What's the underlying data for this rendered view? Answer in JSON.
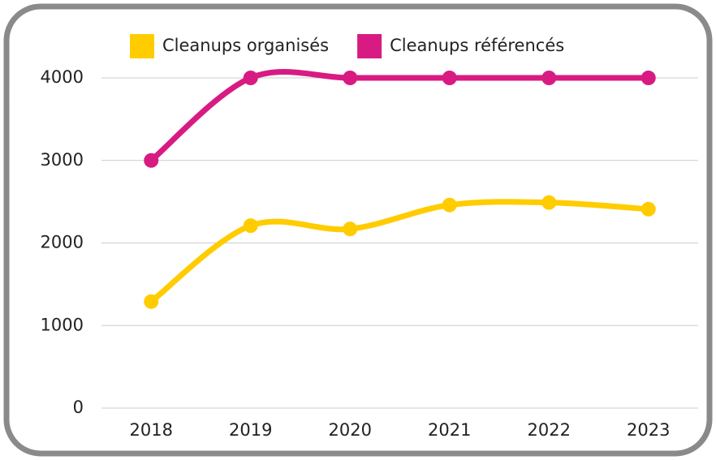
{
  "chart_data": {
    "type": "line",
    "categories": [
      "2018",
      "2019",
      "2020",
      "2021",
      "2022",
      "2023"
    ],
    "series": [
      {
        "name": "Cleanups organisés",
        "color": "#ffcc00",
        "values": [
          1290,
          2210,
          2170,
          2460,
          2490,
          2410
        ]
      },
      {
        "name": "Cleanups référencés",
        "color": "#d81b82",
        "values": [
          3000,
          4000,
          4000,
          4000,
          4000,
          4000
        ]
      }
    ],
    "ylim": [
      0,
      4000
    ],
    "yticks": [
      0,
      1000,
      2000,
      3000,
      4000
    ],
    "grid": true,
    "smooth": true,
    "legend": "top"
  }
}
